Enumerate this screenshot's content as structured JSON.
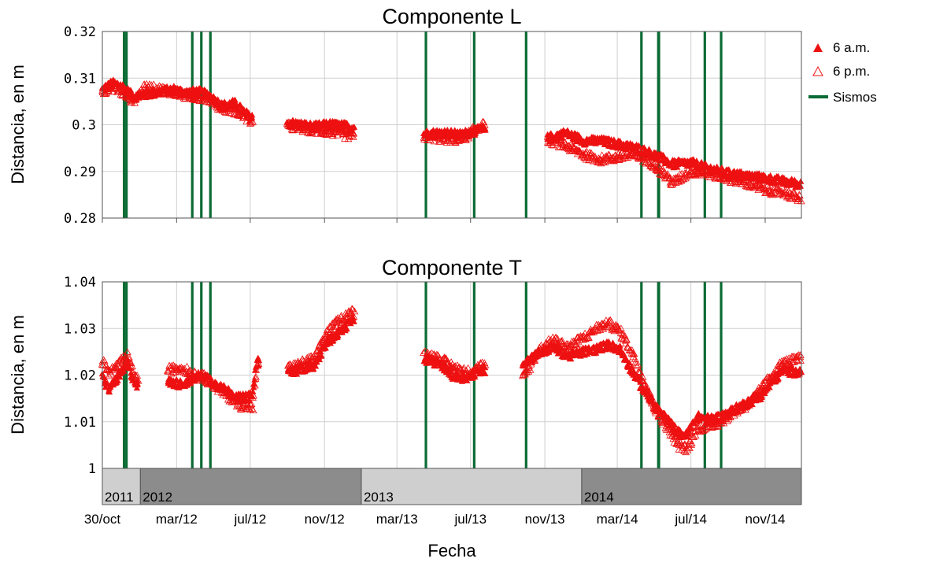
{
  "figure": {
    "xlabel": "Fecha",
    "legend": {
      "position": "top-right",
      "am_label": "6 a.m.",
      "pm_label": "6 p.m.",
      "quake_label": "Sismos"
    },
    "colors": {
      "am": "#ee1111",
      "pm": "#ee1111",
      "quake": "#0b6b34"
    },
    "timeline": [
      {
        "label": "2011",
        "start": "2011-10-30",
        "end": "2012-01-01",
        "color": "#cfcfcf"
      },
      {
        "label": "2012",
        "start": "2012-01-01",
        "end": "2013-01-01",
        "color": "#8c8c8c"
      },
      {
        "label": "2013",
        "start": "2013-01-01",
        "end": "2014-01-01",
        "color": "#cfcfcf"
      },
      {
        "label": "2014",
        "start": "2014-01-01",
        "end": "2014-12-31",
        "color": "#8c8c8c"
      }
    ],
    "xticks": [
      {
        "label": "30/oct",
        "date": "2011-10-30"
      },
      {
        "label": "mar/12",
        "date": "2012-03-01"
      },
      {
        "label": "jul/12",
        "date": "2012-07-01"
      },
      {
        "label": "nov/12",
        "date": "2012-11-01"
      },
      {
        "label": "mar/13",
        "date": "2013-03-01"
      },
      {
        "label": "jul/13",
        "date": "2013-07-01"
      },
      {
        "label": "nov/13",
        "date": "2013-11-01"
      },
      {
        "label": "mar/14",
        "date": "2014-03-01"
      },
      {
        "label": "jul/14",
        "date": "2014-07-01"
      },
      {
        "label": "nov/14",
        "date": "2014-11-01"
      }
    ],
    "earthquakes": [
      "2011-12-05",
      "2011-12-09",
      "2012-03-27",
      "2012-04-11",
      "2012-04-26",
      "2013-04-18",
      "2013-07-07",
      "2013-10-01",
      "2014-04-10",
      "2014-05-08",
      "2014-05-09",
      "2014-07-24",
      "2014-08-20"
    ]
  },
  "chart_data": [
    {
      "type": "scatter",
      "title": "Componente L",
      "ylabel": "Distancia, en m",
      "xlim": [
        "2011-10-30",
        "2014-12-31"
      ],
      "ylim": [
        0.28,
        0.32
      ],
      "yticks": [
        "0.32",
        "0.31",
        "0.3",
        "0.29",
        "0.28"
      ],
      "gaps": [
        [
          "2012-07-05",
          "2012-09-01"
        ],
        [
          "2012-12-20",
          "2013-04-15"
        ],
        [
          "2013-07-25",
          "2013-11-05"
        ]
      ],
      "series": [
        {
          "name": "6 a.m.",
          "marker": "filled-triangle",
          "points": [
            [
              "2011-10-30",
              0.3075
            ],
            [
              "2011-11-15",
              0.3088
            ],
            [
              "2011-12-01",
              0.3083
            ],
            [
              "2011-12-20",
              0.306
            ],
            [
              "2012-01-10",
              0.3065
            ],
            [
              "2012-02-25",
              0.3075
            ],
            [
              "2012-03-15",
              0.3068
            ],
            [
              "2012-04-05",
              0.307
            ],
            [
              "2012-04-25",
              0.3062
            ],
            [
              "2012-05-15",
              0.304
            ],
            [
              "2012-06-05",
              0.3045
            ],
            [
              "2012-07-01",
              0.3015
            ],
            [
              "2012-09-10",
              0.3002
            ],
            [
              "2012-10-15",
              0.2995
            ],
            [
              "2012-11-10",
              0.3
            ],
            [
              "2012-12-15",
              0.2995
            ],
            [
              "2013-04-15",
              0.298
            ],
            [
              "2013-05-15",
              0.2982
            ],
            [
              "2013-06-15",
              0.2978
            ],
            [
              "2013-07-20",
              0.299
            ],
            [
              "2013-11-05",
              0.297
            ],
            [
              "2013-12-05",
              0.2982
            ],
            [
              "2014-01-05",
              0.2965
            ],
            [
              "2014-02-01",
              0.2965
            ],
            [
              "2014-03-01",
              0.2958
            ],
            [
              "2014-04-01",
              0.295
            ],
            [
              "2014-05-01",
              0.2935
            ],
            [
              "2014-06-01",
              0.2915
            ],
            [
              "2014-07-01",
              0.2918
            ],
            [
              "2014-08-01",
              0.2905
            ],
            [
              "2014-09-01",
              0.2895
            ],
            [
              "2014-10-01",
              0.289
            ],
            [
              "2014-11-01",
              0.2885
            ],
            [
              "2014-12-01",
              0.2878
            ],
            [
              "2014-12-30",
              0.2872
            ]
          ]
        },
        {
          "name": "6 p.m.",
          "marker": "hollow-triangle",
          "points": [
            [
              "2011-10-30",
              0.3072
            ],
            [
              "2011-11-15",
              0.308
            ],
            [
              "2011-12-01",
              0.307
            ],
            [
              "2011-12-20",
              0.3052
            ],
            [
              "2012-01-10",
              0.308
            ],
            [
              "2012-02-25",
              0.307
            ],
            [
              "2012-03-15",
              0.3062
            ],
            [
              "2012-04-05",
              0.306
            ],
            [
              "2012-04-25",
              0.3055
            ],
            [
              "2012-05-15",
              0.3035
            ],
            [
              "2012-06-05",
              0.303
            ],
            [
              "2012-07-01",
              0.301
            ],
            [
              "2012-09-10",
              0.2995
            ],
            [
              "2012-10-15",
              0.2988
            ],
            [
              "2012-11-10",
              0.2985
            ],
            [
              "2012-12-15",
              0.2975
            ],
            [
              "2013-04-15",
              0.2975
            ],
            [
              "2013-05-15",
              0.297
            ],
            [
              "2013-06-15",
              0.2968
            ],
            [
              "2013-07-20",
              0.2998
            ],
            [
              "2013-11-05",
              0.2968
            ],
            [
              "2013-12-05",
              0.2955
            ],
            [
              "2014-01-05",
              0.2935
            ],
            [
              "2014-02-01",
              0.2925
            ],
            [
              "2014-03-01",
              0.293
            ],
            [
              "2014-04-01",
              0.2935
            ],
            [
              "2014-05-01",
              0.2915
            ],
            [
              "2014-06-01",
              0.2875
            ],
            [
              "2014-07-01",
              0.29
            ],
            [
              "2014-08-01",
              0.2895
            ],
            [
              "2014-09-01",
              0.2885
            ],
            [
              "2014-10-01",
              0.2875
            ],
            [
              "2014-11-01",
              0.286
            ],
            [
              "2014-12-01",
              0.2855
            ],
            [
              "2014-12-30",
              0.284
            ]
          ]
        }
      ]
    },
    {
      "type": "scatter",
      "title": "Componente T",
      "ylabel": "Distancia, en m",
      "xlim": [
        "2011-10-30",
        "2014-12-31"
      ],
      "ylim": [
        1.0,
        1.04
      ],
      "yticks": [
        "1.04",
        "1.03",
        "1.02",
        "1.01",
        "1"
      ],
      "gaps": [
        [
          "2011-12-28",
          "2012-02-15"
        ],
        [
          "2012-07-15",
          "2012-09-01"
        ],
        [
          "2012-12-20",
          "2013-04-15"
        ],
        [
          "2013-07-25",
          "2013-09-25"
        ]
      ],
      "series": [
        {
          "name": "6 a.m.",
          "marker": "filled-triangle",
          "points": [
            [
              "2011-10-30",
              1.0195
            ],
            [
              "2011-11-10",
              1.017
            ],
            [
              "2011-11-25",
              1.0195
            ],
            [
              "2011-12-10",
              1.022
            ],
            [
              "2011-12-25",
              1.018
            ],
            [
              "2012-02-15",
              1.0185
            ],
            [
              "2012-03-10",
              1.018
            ],
            [
              "2012-03-25",
              1.019
            ],
            [
              "2012-04-15",
              1.02
            ],
            [
              "2012-05-05",
              1.018
            ],
            [
              "2012-05-25",
              1.0165
            ],
            [
              "2012-06-15",
              1.015
            ],
            [
              "2012-07-05",
              1.0155
            ],
            [
              "2012-07-12",
              1.023
            ],
            [
              "2012-09-05",
              1.0205
            ],
            [
              "2012-09-25",
              1.0215
            ],
            [
              "2012-10-15",
              1.022
            ],
            [
              "2012-11-05",
              1.027
            ],
            [
              "2012-11-25",
              1.029
            ],
            [
              "2012-12-15",
              1.0315
            ],
            [
              "2013-04-15",
              1.0235
            ],
            [
              "2013-05-10",
              1.0225
            ],
            [
              "2013-06-05",
              1.0195
            ],
            [
              "2013-06-25",
              1.0195
            ],
            [
              "2013-07-20",
              1.021
            ],
            [
              "2013-09-25",
              1.0225
            ],
            [
              "2013-10-20",
              1.0245
            ],
            [
              "2013-11-15",
              1.026
            ],
            [
              "2013-12-10",
              1.024
            ],
            [
              "2014-01-05",
              1.025
            ],
            [
              "2014-01-25",
              1.0255
            ],
            [
              "2014-02-15",
              1.0265
            ],
            [
              "2014-03-05",
              1.0255
            ],
            [
              "2014-03-25",
              1.021
            ],
            [
              "2014-04-15",
              1.0165
            ],
            [
              "2014-05-05",
              1.013
            ],
            [
              "2014-05-25",
              1.01
            ],
            [
              "2014-06-10",
              1.0075
            ],
            [
              "2014-06-25",
              1.007
            ],
            [
              "2014-07-10",
              1.011
            ],
            [
              "2014-07-30",
              1.0105
            ],
            [
              "2014-08-20",
              1.011
            ],
            [
              "2014-09-10",
              1.0125
            ],
            [
              "2014-10-01",
              1.014
            ],
            [
              "2014-10-20",
              1.015
            ],
            [
              "2014-11-10",
              1.018
            ],
            [
              "2014-11-30",
              1.021
            ],
            [
              "2014-12-30",
              1.0205
            ]
          ]
        },
        {
          "name": "6 p.m.",
          "marker": "hollow-triangle",
          "points": [
            [
              "2011-10-30",
              1.023
            ],
            [
              "2011-11-10",
              1.0205
            ],
            [
              "2011-11-25",
              1.022
            ],
            [
              "2011-12-10",
              1.024
            ],
            [
              "2011-12-25",
              1.019
            ],
            [
              "2012-02-15",
              1.021
            ],
            [
              "2012-03-10",
              1.0215
            ],
            [
              "2012-03-25",
              1.0205
            ],
            [
              "2012-04-15",
              1.0195
            ],
            [
              "2012-05-05",
              1.0175
            ],
            [
              "2012-05-25",
              1.0155
            ],
            [
              "2012-06-15",
              1.0135
            ],
            [
              "2012-07-05",
              1.013
            ],
            [
              "2012-07-12",
              1.0225
            ],
            [
              "2012-09-05",
              1.0215
            ],
            [
              "2012-09-25",
              1.0225
            ],
            [
              "2012-10-15",
              1.0235
            ],
            [
              "2012-11-05",
              1.029
            ],
            [
              "2012-11-25",
              1.0315
            ],
            [
              "2012-12-15",
              1.0335
            ],
            [
              "2013-04-15",
              1.0245
            ],
            [
              "2013-05-10",
              1.0235
            ],
            [
              "2013-06-05",
              1.0215
            ],
            [
              "2013-06-25",
              1.0205
            ],
            [
              "2013-07-20",
              1.022
            ],
            [
              "2013-09-25",
              1.019
            ],
            [
              "2013-10-20",
              1.025
            ],
            [
              "2013-11-15",
              1.0275
            ],
            [
              "2013-12-10",
              1.026
            ],
            [
              "2014-01-05",
              1.028
            ],
            [
              "2014-01-25",
              1.03
            ],
            [
              "2014-02-15",
              1.031
            ],
            [
              "2014-03-05",
              1.0295
            ],
            [
              "2014-03-25",
              1.025
            ],
            [
              "2014-04-15",
              1.0185
            ],
            [
              "2014-05-05",
              1.012
            ],
            [
              "2014-05-25",
              1.0085
            ],
            [
              "2014-06-10",
              1.005
            ],
            [
              "2014-06-25",
              1.004
            ],
            [
              "2014-07-10",
              1.0085
            ],
            [
              "2014-07-30",
              1.009
            ],
            [
              "2014-08-20",
              1.01
            ],
            [
              "2014-09-10",
              1.012
            ],
            [
              "2014-10-01",
              1.0135
            ],
            [
              "2014-10-20",
              1.016
            ],
            [
              "2014-11-10",
              1.0195
            ],
            [
              "2014-11-30",
              1.0225
            ],
            [
              "2014-12-30",
              1.0235
            ]
          ]
        }
      ]
    }
  ]
}
